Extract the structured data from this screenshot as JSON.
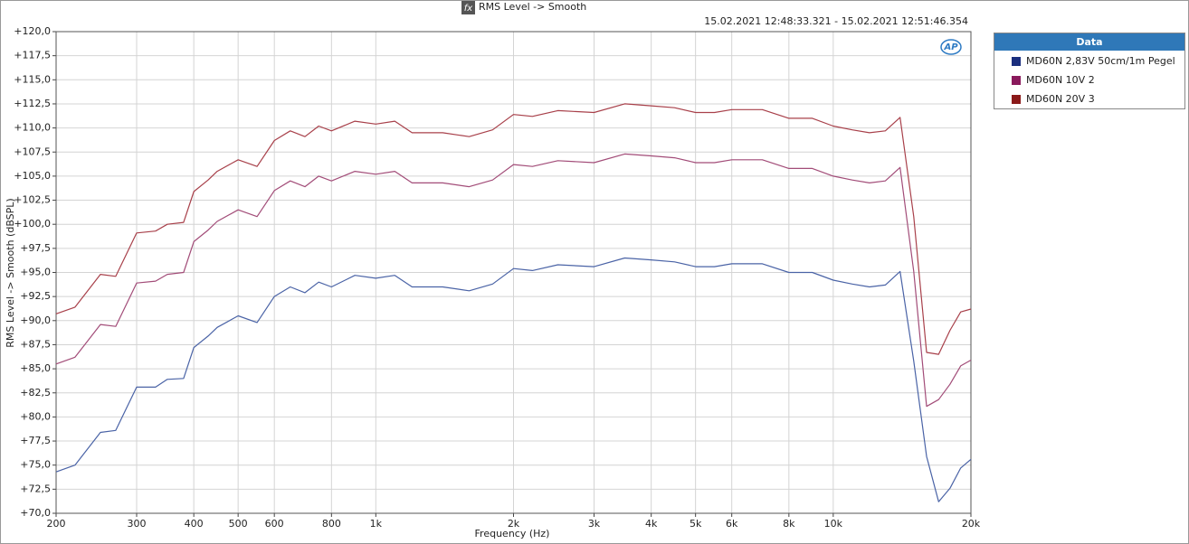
{
  "chart_data": {
    "type": "line",
    "title": "RMS Level -> Smooth",
    "subtitle": "15.02.2021 12:48:33.321 - 15.02.2021 12:51:46.354",
    "x_label": "Frequency (Hz)",
    "y_label": "RMS Level -> Smooth (dBSPL)",
    "legend_title": "Data",
    "xscale": "log",
    "grid": true,
    "legend": "outside-right",
    "x": [
      200,
      220,
      250,
      270,
      300,
      330,
      350,
      380,
      400,
      430,
      450,
      500,
      550,
      600,
      650,
      700,
      750,
      800,
      900,
      1000,
      1100,
      1200,
      1400,
      1600,
      1800,
      2000,
      2200,
      2500,
      3000,
      3500,
      4000,
      4500,
      5000,
      5500,
      6000,
      6500,
      7000,
      8000,
      9000,
      10000,
      11000,
      12000,
      13000,
      14000,
      15000,
      16000,
      17000,
      18000,
      19000,
      20000
    ],
    "series": [
      {
        "name": "MD60N 2,83V 50cm/1m Pegel",
        "color": "#4a63a6",
        "legend_color": "#1b2f7e",
        "values": [
          74.3,
          75.0,
          78.4,
          78.6,
          83.1,
          83.1,
          83.9,
          84.0,
          87.2,
          88.4,
          89.3,
          90.5,
          89.8,
          92.5,
          93.5,
          92.9,
          94.0,
          93.5,
          94.7,
          94.4,
          94.7,
          93.5,
          93.5,
          93.1,
          93.8,
          95.4,
          95.2,
          95.8,
          95.6,
          96.5,
          96.3,
          96.1,
          95.6,
          95.6,
          95.9,
          95.9,
          95.9,
          95.0,
          95.0,
          94.2,
          93.8,
          93.5,
          93.7,
          95.1,
          85.8,
          75.9,
          71.2,
          72.6,
          74.7,
          75.6
        ]
      },
      {
        "name": "MD60N 10V 2",
        "color": "#a24c78",
        "legend_color": "#8a1a5c",
        "values": [
          85.5,
          86.2,
          89.6,
          89.4,
          93.9,
          94.1,
          94.8,
          95.0,
          98.2,
          99.4,
          100.3,
          101.5,
          100.8,
          103.5,
          104.5,
          103.9,
          105.0,
          104.5,
          105.5,
          105.2,
          105.5,
          104.3,
          104.3,
          103.9,
          104.6,
          106.2,
          106.0,
          106.6,
          106.4,
          107.3,
          107.1,
          106.9,
          106.4,
          106.4,
          106.7,
          106.7,
          106.7,
          105.8,
          105.8,
          105.0,
          104.6,
          104.3,
          104.5,
          105.9,
          95.1,
          81.1,
          81.8,
          83.4,
          85.3,
          85.9
        ]
      },
      {
        "name": "MD60N 20V 3",
        "color": "#a8404a",
        "legend_color": "#8b1a1a",
        "values": [
          90.7,
          91.4,
          94.8,
          94.6,
          99.1,
          99.3,
          100.0,
          100.2,
          103.4,
          104.6,
          105.5,
          106.7,
          106.0,
          108.7,
          109.7,
          109.1,
          110.2,
          109.7,
          110.7,
          110.4,
          110.7,
          109.5,
          109.5,
          109.1,
          109.8,
          111.4,
          111.2,
          111.8,
          111.6,
          112.5,
          112.3,
          112.1,
          111.6,
          111.6,
          111.9,
          111.9,
          111.9,
          111.0,
          111.0,
          110.2,
          109.8,
          109.5,
          109.7,
          111.1,
          100.8,
          86.7,
          86.5,
          89.0,
          90.9,
          91.2
        ]
      }
    ],
    "xlim": [
      200,
      20000
    ],
    "xticks": [
      200,
      300,
      400,
      500,
      600,
      800,
      {
        "value": 1000,
        "label": "1k"
      },
      {
        "value": 2000,
        "label": "2k"
      },
      {
        "value": 3000,
        "label": "3k"
      },
      {
        "value": 4000,
        "label": "4k"
      },
      {
        "value": 5000,
        "label": "5k"
      },
      {
        "value": 6000,
        "label": "6k"
      },
      {
        "value": 8000,
        "label": "8k"
      },
      {
        "value": 10000,
        "label": "10k"
      },
      {
        "value": 20000,
        "label": "20k"
      }
    ],
    "ylim": [
      70,
      120
    ],
    "yticks": [
      {
        "value": 70,
        "label": "+70,0"
      },
      {
        "value": 72.5,
        "label": "+72,5"
      },
      {
        "value": 75,
        "label": "+75,0"
      },
      {
        "value": 77.5,
        "label": "+77,5"
      },
      {
        "value": 80,
        "label": "+80,0"
      },
      {
        "value": 82.5,
        "label": "+82,5"
      },
      {
        "value": 85,
        "label": "+85,0"
      },
      {
        "value": 87.5,
        "label": "+87,5"
      },
      {
        "value": 90,
        "label": "+90,0"
      },
      {
        "value": 92.5,
        "label": "+92,5"
      },
      {
        "value": 95,
        "label": "+95,0"
      },
      {
        "value": 97.5,
        "label": "+97,5"
      },
      {
        "value": 100,
        "label": "+100,0"
      },
      {
        "value": 102.5,
        "label": "+102,5"
      },
      {
        "value": 105,
        "label": "+105,0"
      },
      {
        "value": 107.5,
        "label": "+107,5"
      },
      {
        "value": 110,
        "label": "+110,0"
      },
      {
        "value": 112.5,
        "label": "+112,5"
      },
      {
        "value": 115,
        "label": "+115,0"
      },
      {
        "value": 117.5,
        "label": "+117,5"
      },
      {
        "value": 120,
        "label": "+120,0"
      }
    ]
  }
}
